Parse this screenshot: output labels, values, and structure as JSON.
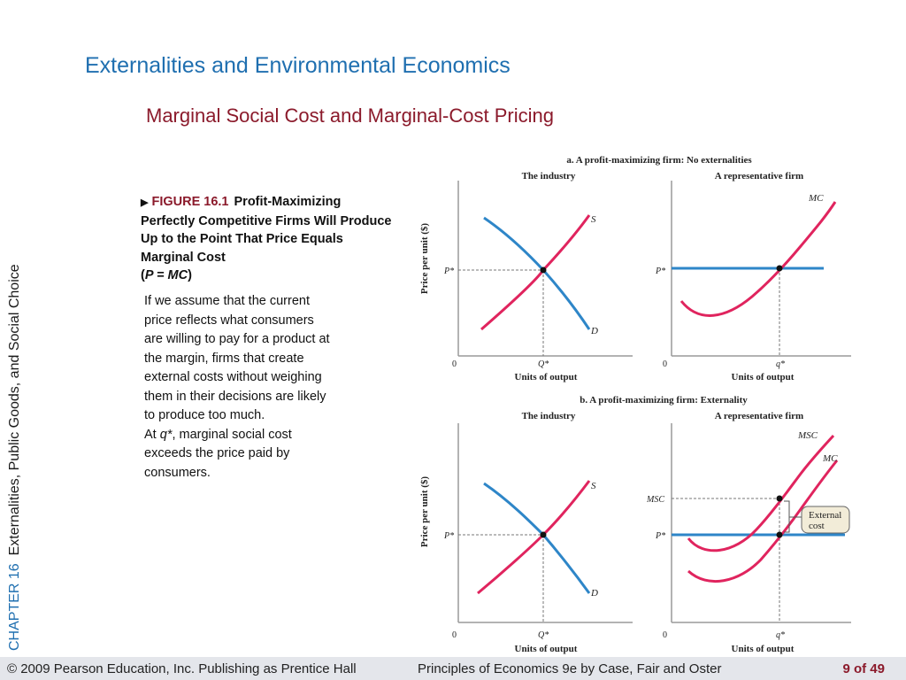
{
  "slide": {
    "title": "Externalities and Environmental Economics",
    "subtitle": "Marginal Social Cost and Marginal-Cost Pricing"
  },
  "side": {
    "chapter": "CHAPTER 16",
    "topic": "Externalities, Public Goods, and Social Choice"
  },
  "caption": {
    "figure_number": "FIGURE 16.1",
    "title_main": "Profit-Maximizing Perfectly Competitive Firms Will Produce Up to the Point That Price Equals Marginal Cost",
    "title_eq_open": "(",
    "title_eq": "P = MC",
    "title_eq_close": ")",
    "body_lines": [
      "If we assume that the current",
      "price reflects what consumers",
      "are willing to pay for a product at",
      "the margin, firms that create",
      "external costs without weighing",
      "them in their decisions are likely",
      "to produce too much."
    ],
    "body_at": "At ",
    "body_q": "q*",
    "body_rest_lines": [
      ", marginal social cost",
      "exceeds the price paid by",
      "consumers."
    ]
  },
  "figure": {
    "panel_a_title": "a. A profit-maximizing firm: No externalities",
    "panel_b_title": "b. A profit-maximizing firm: Externality",
    "industry_label": "The industry",
    "firm_label": "A representative firm",
    "y_axis_label": "Price per unit ($)",
    "x_axis_label": "Units of output",
    "origin": "0",
    "p_star": "P*",
    "Q_star": "Q*",
    "q_star": "q*",
    "supply": "S",
    "demand": "D",
    "mc": "MC",
    "msc": "MSC",
    "external_cost": [
      "External",
      "cost"
    ]
  },
  "footer": {
    "copyright": "© 2009 Pearson Education, Inc. Publishing as Prentice Hall",
    "book": "Principles of Economics 9e by Case, Fair and Oster",
    "page": "9 of 49"
  },
  "colors": {
    "title_blue": "#1f6fb0",
    "subtitle_red": "#8b1a2b",
    "curve_red": "#e0245e",
    "curve_blue": "#2e86c8"
  }
}
